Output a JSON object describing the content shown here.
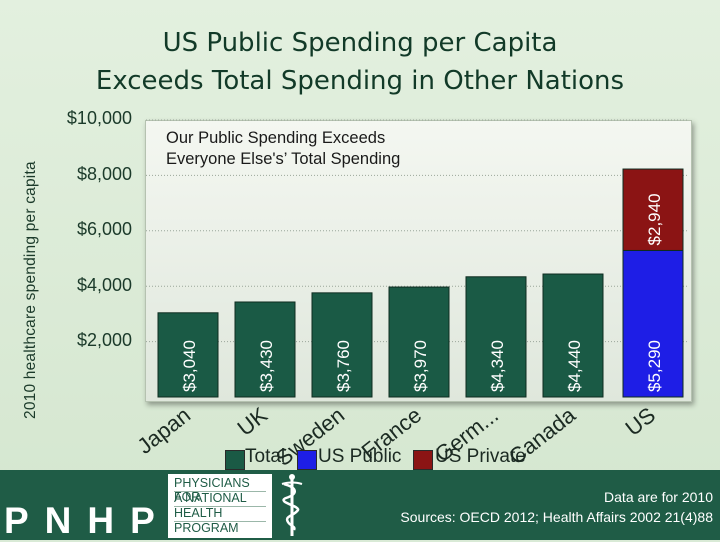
{
  "title_line1": "US Public Spending per Capita",
  "title_line2": "Exceeds Total Spending in Other Nations",
  "annotation_line1": "Our Public Spending Exceeds",
  "annotation_line2": "Everyone Else's’ Total Spending",
  "chart_data": {
    "type": "bar",
    "stacked": true,
    "ylabel": "2010 healthcare spending per capita",
    "ylim": [
      0,
      10000
    ],
    "y_ticks": [
      "$2,000",
      "$4,000",
      "$6,000",
      "$8,000",
      "$10,000"
    ],
    "y_tick_values": [
      2000,
      4000,
      6000,
      8000,
      10000
    ],
    "categories": [
      "Japan",
      "UK",
      "Sweden",
      "France",
      "Germ...",
      "Canada",
      "US"
    ],
    "series": [
      {
        "name": "Total",
        "color": "#1a5a45",
        "values": [
          3040,
          3430,
          3760,
          3970,
          4340,
          4440,
          null
        ],
        "labels": [
          "$3,040",
          "$3,430",
          "$3,760",
          "$3,970",
          "$4,340",
          "$4,440",
          null
        ]
      },
      {
        "name": "US Public",
        "color": "#1e1ee6",
        "values": [
          null,
          null,
          null,
          null,
          null,
          null,
          5290
        ],
        "labels": [
          null,
          null,
          null,
          null,
          null,
          null,
          "$5,290"
        ]
      },
      {
        "name": "US Private",
        "color": "#8b1414",
        "values": [
          null,
          null,
          null,
          null,
          null,
          null,
          2940
        ],
        "labels": [
          null,
          null,
          null,
          null,
          null,
          null,
          "$2,940"
        ]
      }
    ],
    "legend_position": "bottom"
  },
  "legend": {
    "total": "Total",
    "us_public": "US Public",
    "us_private": "US Private"
  },
  "footer": {
    "logo_text": "PNHP",
    "org_line1": "PHYSICIANS FOR",
    "org_line2": "A NATIONAL",
    "org_line3": "HEALTH",
    "org_line4": "PROGRAM",
    "source_line1": "Data are for 2010",
    "source_line2": "Sources: OECD 2012; Health Affairs 2002 21(4)88"
  },
  "colors": {
    "bar_dark": "#1a5a45",
    "us_public": "#1e1ee6",
    "us_private": "#8b1414",
    "footer_bg": "#1f5c46"
  }
}
